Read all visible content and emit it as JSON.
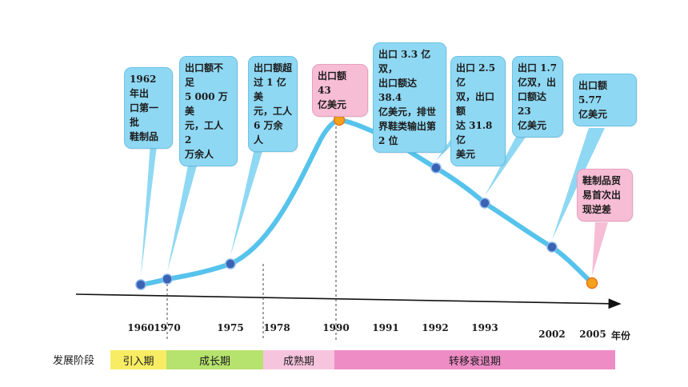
{
  "callouts": [
    {
      "text": "1962 年出\n口第一批\n鞋制品",
      "color": "blue"
    },
    {
      "text": "出口额不足\n5 000 万美\n元，工人 2\n万余人",
      "color": "blue"
    },
    {
      "text": "出口额超\n过 1 亿美\n元，工人\n6 万余人",
      "color": "blue"
    },
    {
      "text": "出口额 43\n亿美元",
      "color": "pink"
    },
    {
      "text": "出口 3.3 亿双，\n出口额达 38.4\n亿美元，排世\n界鞋类输出第\n2 位",
      "color": "blue"
    },
    {
      "text": "出口 2.5 亿\n双，出口额\n达 31.8 亿\n美元",
      "color": "blue"
    },
    {
      "text": "出口 1.7\n亿双，出\n口额达 23\n亿美元",
      "color": "blue"
    },
    {
      "text": "出口额 5.77\n亿美元",
      "color": "blue"
    },
    {
      "text": "鞋制品贸\n易首次出\n现逆差",
      "color": "pink"
    }
  ],
  "years": [
    "1960",
    "1970",
    "1975",
    "1978",
    "1990",
    "1991",
    "1992",
    "1993",
    "2002",
    "2005"
  ],
  "year_unit": "年份",
  "stage_title": "发展阶段",
  "stages": [
    {
      "label": "引入期",
      "color": "#f7ec63"
    },
    {
      "label": "成长期",
      "color": "#b6e26e"
    },
    {
      "label": "成熟期",
      "color": "#f7c4de"
    },
    {
      "label": "转移衰退期",
      "color": "#ee8cc6"
    }
  ],
  "colors": {
    "curve": "#56c3ec",
    "point": "#3a63b5",
    "peak_point": "#f4a11b",
    "axis": "#111111"
  }
}
